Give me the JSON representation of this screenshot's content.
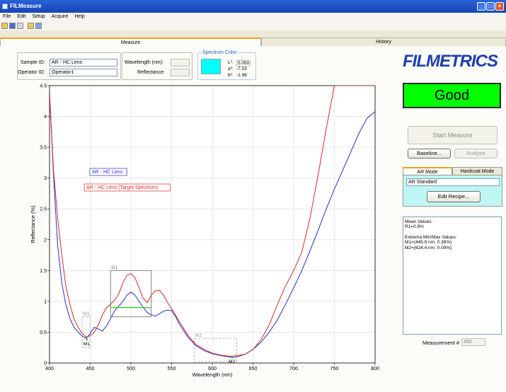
{
  "window": {
    "title": "FILMeasure"
  },
  "menu": [
    "File",
    "Edit",
    "Setup",
    "Acquire",
    "Help"
  ],
  "tabs": {
    "measure": "Measure",
    "history": "History"
  },
  "sample": {
    "sample_id_label": "Sample ID:",
    "sample_id_value": "AR - HC Lens",
    "operator_id_label": "Operator ID:",
    "operator_id_value": "Operator1",
    "wavelength_label": "Wavelength (nm):",
    "wavelength_value": "",
    "reflectance_label": "Reflectance:",
    "reflectance_value": ""
  },
  "spectrum_color": {
    "title": "Spectrum Color",
    "swatch": "#00ffff",
    "L_label": "L*:",
    "L_value": "5.050",
    "a_label": "a*:",
    "a_value": "-7.03",
    "b_label": "b*:",
    "b_value": "-1.96"
  },
  "logo": "FILMETRICS",
  "status": "Good",
  "buttons": {
    "start_measure": "Start Measure",
    "baseline": "Baseline...",
    "analyze": "Analyze",
    "edit_recipe": "Edit Recipe..."
  },
  "mode_tabs": {
    "ar": "AR Mode",
    "hardcoat": "Hardcoat Mode"
  },
  "recipe": "AR Standard",
  "results": {
    "mean_title": "Mean Values:",
    "r1": "R1=0.9%",
    "extrema_title": "Extrema Min/Max Values:",
    "m1": "M1=(445.9 nm, 0.38%)",
    "m2": "M2=(624.4 nm, 0.09%)"
  },
  "measurement": {
    "label": "Measurement #",
    "value": "468"
  },
  "chart_data": {
    "type": "line",
    "xlabel": "Wavelength (nm)",
    "ylabel": "Reflectance (%)",
    "xlim": [
      400,
      800
    ],
    "ylim": [
      0,
      4.5
    ],
    "xticks": [
      "400",
      "450",
      "500",
      "550",
      "600",
      "650",
      "700",
      "750",
      "800"
    ],
    "yticks": [
      "0",
      "0.5",
      "1",
      "1.5",
      "2",
      "2.5",
      "3",
      "3.5",
      "4",
      "4.5"
    ],
    "grid": true,
    "legend_placement": "upper-left",
    "series": [
      {
        "name": "AR - HC Lens",
        "color": "#2b2bd8",
        "x": [
          400,
          405,
          410,
          415,
          420,
          425,
          430,
          435,
          440,
          445,
          450,
          455,
          460,
          465,
          470,
          475,
          480,
          485,
          490,
          495,
          500,
          505,
          510,
          515,
          520,
          525,
          530,
          535,
          540,
          545,
          550,
          555,
          560,
          570,
          580,
          590,
          600,
          610,
          620,
          625,
          630,
          640,
          650,
          660,
          670,
          680,
          690,
          700,
          710,
          720,
          730,
          740,
          750,
          760,
          770,
          780,
          790,
          800
        ],
        "y": [
          4.4,
          3.0,
          1.9,
          1.3,
          0.95,
          0.72,
          0.58,
          0.5,
          0.44,
          0.4,
          0.48,
          0.58,
          0.55,
          0.52,
          0.6,
          0.72,
          0.85,
          0.92,
          1.0,
          1.1,
          1.15,
          1.1,
          1.0,
          0.9,
          0.82,
          0.78,
          0.76,
          0.8,
          0.84,
          0.86,
          0.85,
          0.75,
          0.62,
          0.42,
          0.28,
          0.2,
          0.15,
          0.12,
          0.1,
          0.09,
          0.1,
          0.14,
          0.22,
          0.34,
          0.5,
          0.7,
          0.95,
          1.22,
          1.5,
          1.82,
          2.15,
          2.5,
          2.82,
          3.12,
          3.42,
          3.72,
          3.97,
          4.08
        ]
      },
      {
        "name": "AR - HC Lens (Target Spectrum)",
        "color": "#e02828",
        "x": [
          400,
          405,
          410,
          415,
          420,
          425,
          430,
          435,
          440,
          445,
          450,
          455,
          460,
          465,
          470,
          475,
          480,
          485,
          490,
          495,
          500,
          505,
          510,
          515,
          520,
          525,
          530,
          535,
          540,
          545,
          550,
          560,
          570,
          580,
          590,
          600,
          610,
          620,
          625,
          630,
          640,
          650,
          660,
          670,
          680,
          690,
          700,
          710,
          720,
          730,
          740,
          750,
          760,
          770,
          780,
          790,
          800
        ],
        "y": [
          4.35,
          3.1,
          2.35,
          1.75,
          1.25,
          0.95,
          0.72,
          0.58,
          0.48,
          0.42,
          0.44,
          0.5,
          0.62,
          0.78,
          0.9,
          0.95,
          1.02,
          1.12,
          1.3,
          1.42,
          1.45,
          1.38,
          1.22,
          1.05,
          0.98,
          1.1,
          1.17,
          1.18,
          1.1,
          0.98,
          0.88,
          0.66,
          0.45,
          0.3,
          0.22,
          0.16,
          0.13,
          0.11,
          0.11,
          0.12,
          0.14,
          0.22,
          0.38,
          0.62,
          0.95,
          1.25,
          1.5,
          1.8,
          2.35,
          3.05,
          3.8,
          4.5,
          4.5,
          4.5,
          4.5,
          4.5,
          4.5
        ]
      },
      {
        "name": "",
        "color": "#1ed21e",
        "x": [
          475,
          525
        ],
        "y": [
          0.9,
          0.9
        ]
      }
    ],
    "annotations": [
      {
        "label": "R1",
        "x0": 475,
        "x1": 525,
        "y0": 0.75,
        "y1": 1.5,
        "color": "#808080"
      },
      {
        "label": "M1",
        "x0": 440,
        "x1": 450,
        "y0": 0.25,
        "y1": 0.75,
        "color": "#a0a0a0"
      },
      {
        "label": "M2",
        "x0": 578,
        "x1": 630,
        "y0": 0.02,
        "y1": 0.4,
        "color": "#a0a0a0"
      }
    ]
  }
}
